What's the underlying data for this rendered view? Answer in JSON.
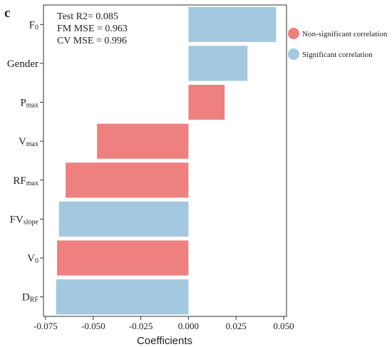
{
  "panel_label": "c",
  "stats": [
    "Test R2= 0.085",
    "FM MSE = 0.963",
    "CV MSE = 0.996"
  ],
  "legend": {
    "items": [
      {
        "label": "Non-significant correlation",
        "color": "#ee8080"
      },
      {
        "label": "Significant correlation",
        "color": "#a3c8df"
      }
    ]
  },
  "chart_data": {
    "type": "bar",
    "orientation": "horizontal",
    "xlabel": "Coefficients",
    "ylabel": "",
    "xlim": [
      -0.075,
      0.05
    ],
    "xticks": [
      "-0.075",
      "-0.050",
      "-0.025",
      "0.000",
      "0.025",
      "0.050"
    ],
    "xtick_values": [
      -0.075,
      -0.05,
      -0.025,
      0.0,
      0.025,
      0.05
    ],
    "grid": false,
    "legend_position": "top-right",
    "colors": {
      "significant": "#a3c8df",
      "non_significant": "#ee8080"
    },
    "categories": [
      {
        "main": "F",
        "sub": "0"
      },
      {
        "main": "Gender",
        "sub": ""
      },
      {
        "main": "P",
        "sub": "max"
      },
      {
        "main": "V",
        "sub": "max"
      },
      {
        "main": "RF",
        "sub": "max"
      },
      {
        "main": "FV",
        "sub": "slope"
      },
      {
        "main": "V",
        "sub": "0"
      },
      {
        "main": "D",
        "sub": "RF"
      }
    ],
    "values": [
      0.046,
      0.031,
      0.019,
      -0.048,
      -0.0645,
      -0.068,
      -0.069,
      -0.0695
    ],
    "significant": [
      true,
      true,
      false,
      false,
      false,
      true,
      false,
      true
    ]
  }
}
